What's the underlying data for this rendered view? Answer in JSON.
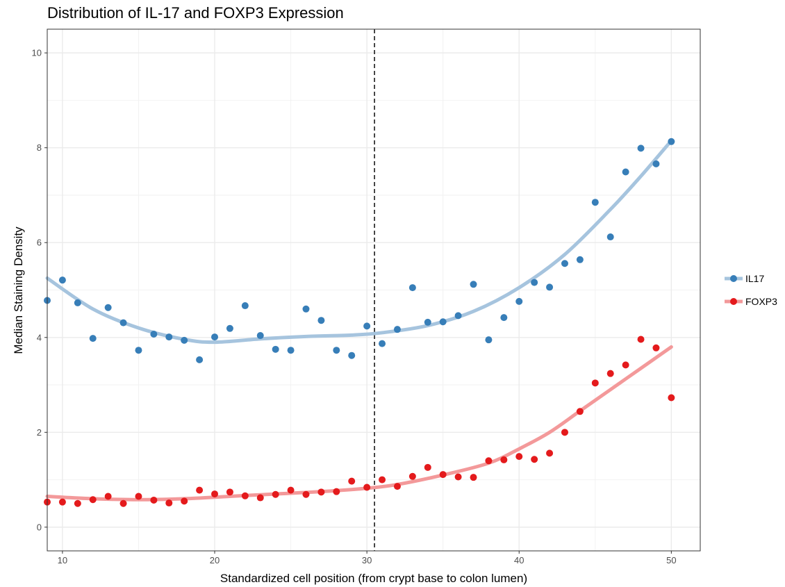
{
  "chart_data": {
    "type": "scatter",
    "title": "Distribution of IL-17 and FOXP3 Expression",
    "xlabel": "Standardized cell position (from crypt base to colon lumen)",
    "ylabel": "Median Staining Density",
    "xlim": [
      9,
      51.9
    ],
    "ylim": [
      -0.5,
      10.5
    ],
    "xticks": [
      10,
      20,
      30,
      40,
      50
    ],
    "yticks": [
      0,
      2,
      4,
      6,
      8,
      10
    ],
    "grid": true,
    "legend_position": "right",
    "vline": {
      "x": 30.5,
      "style": "dashed",
      "color": "#333333"
    },
    "series": [
      {
        "name": "IL17",
        "color": "#377eb8",
        "smooth_color": "#a6c4de",
        "points": [
          [
            9,
            4.78
          ],
          [
            10,
            5.21
          ],
          [
            11,
            4.73
          ],
          [
            12,
            3.98
          ],
          [
            13,
            4.63
          ],
          [
            14,
            4.31
          ],
          [
            15,
            3.73
          ],
          [
            16,
            4.07
          ],
          [
            17,
            4.01
          ],
          [
            18,
            3.94
          ],
          [
            19,
            3.53
          ],
          [
            20,
            4.01
          ],
          [
            21,
            4.19
          ],
          [
            22,
            4.67
          ],
          [
            23,
            4.04
          ],
          [
            24,
            3.75
          ],
          [
            25,
            3.73
          ],
          [
            26,
            4.6
          ],
          [
            27,
            4.36
          ],
          [
            28,
            3.73
          ],
          [
            29,
            3.62
          ],
          [
            30,
            4.24
          ],
          [
            31,
            3.87
          ],
          [
            32,
            4.17
          ],
          [
            33,
            5.05
          ],
          [
            34,
            4.32
          ],
          [
            35,
            4.33
          ],
          [
            36,
            4.46
          ],
          [
            37,
            5.12
          ],
          [
            38,
            3.95
          ],
          [
            39,
            4.42
          ],
          [
            40,
            4.76
          ],
          [
            41,
            5.16
          ],
          [
            42,
            5.06
          ],
          [
            43,
            5.56
          ],
          [
            44,
            5.64
          ],
          [
            45,
            6.85
          ],
          [
            46,
            6.12
          ],
          [
            47,
            7.49
          ],
          [
            48,
            7.99
          ],
          [
            49,
            7.66
          ],
          [
            50,
            8.13
          ]
        ],
        "smooth": [
          [
            9,
            5.25
          ],
          [
            12,
            4.6
          ],
          [
            15,
            4.2
          ],
          [
            18,
            3.96
          ],
          [
            20,
            3.9
          ],
          [
            23,
            3.97
          ],
          [
            26,
            4.02
          ],
          [
            29,
            4.05
          ],
          [
            31,
            4.1
          ],
          [
            34,
            4.25
          ],
          [
            37,
            4.55
          ],
          [
            40,
            5.05
          ],
          [
            43,
            5.75
          ],
          [
            46,
            6.7
          ],
          [
            48,
            7.4
          ],
          [
            50,
            8.15
          ]
        ]
      },
      {
        "name": "FOXP3",
        "color": "#e41a1c",
        "smooth_color": "#f3999a",
        "points": [
          [
            9,
            0.53
          ],
          [
            10,
            0.53
          ],
          [
            11,
            0.5
          ],
          [
            12,
            0.58
          ],
          [
            13,
            0.65
          ],
          [
            14,
            0.5
          ],
          [
            15,
            0.65
          ],
          [
            16,
            0.57
          ],
          [
            17,
            0.51
          ],
          [
            18,
            0.55
          ],
          [
            19,
            0.78
          ],
          [
            20,
            0.7
          ],
          [
            21,
            0.74
          ],
          [
            22,
            0.66
          ],
          [
            23,
            0.62
          ],
          [
            24,
            0.69
          ],
          [
            25,
            0.78
          ],
          [
            26,
            0.69
          ],
          [
            27,
            0.74
          ],
          [
            28,
            0.75
          ],
          [
            29,
            0.97
          ],
          [
            30,
            0.84
          ],
          [
            31,
            1.0
          ],
          [
            32,
            0.86
          ],
          [
            33,
            1.07
          ],
          [
            34,
            1.26
          ],
          [
            35,
            1.11
          ],
          [
            36,
            1.06
          ],
          [
            37,
            1.05
          ],
          [
            38,
            1.4
          ],
          [
            39,
            1.42
          ],
          [
            40,
            1.49
          ],
          [
            41,
            1.43
          ],
          [
            42,
            1.56
          ],
          [
            43,
            2.0
          ],
          [
            44,
            2.44
          ],
          [
            45,
            3.04
          ],
          [
            46,
            3.24
          ],
          [
            47,
            3.42
          ],
          [
            48,
            3.96
          ],
          [
            49,
            3.78
          ],
          [
            50,
            2.73
          ]
        ],
        "smooth": [
          [
            9,
            0.65
          ],
          [
            12,
            0.6
          ],
          [
            15,
            0.58
          ],
          [
            18,
            0.6
          ],
          [
            21,
            0.65
          ],
          [
            24,
            0.7
          ],
          [
            27,
            0.75
          ],
          [
            30,
            0.82
          ],
          [
            32,
            0.9
          ],
          [
            35,
            1.1
          ],
          [
            38,
            1.35
          ],
          [
            40,
            1.65
          ],
          [
            42,
            2.0
          ],
          [
            44,
            2.45
          ],
          [
            46,
            2.9
          ],
          [
            48,
            3.35
          ],
          [
            50,
            3.8
          ]
        ]
      }
    ]
  }
}
